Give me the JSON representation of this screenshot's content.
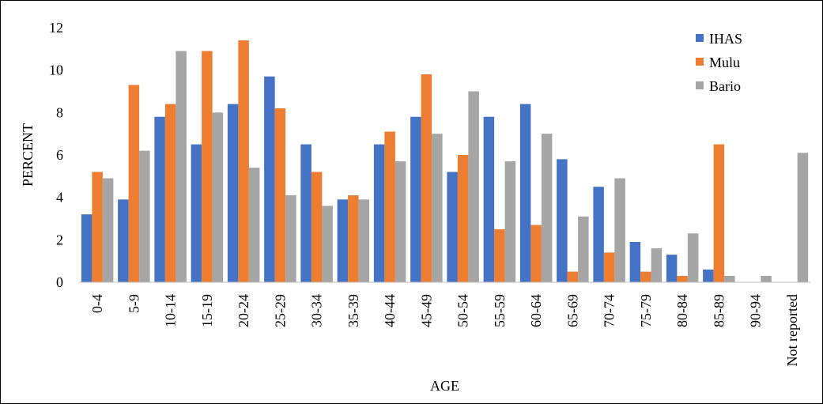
{
  "chart_data": {
    "type": "bar",
    "xlabel": "AGE",
    "ylabel": "PERCENT",
    "ylim": [
      0,
      12
    ],
    "yticks": [
      0,
      2,
      4,
      6,
      8,
      10,
      12
    ],
    "grid": false,
    "legend_position": "top-right",
    "categories": [
      "0-4",
      "5-9",
      "10-14",
      "15-19",
      "20-24",
      "25-29",
      "30-34",
      "35-39",
      "40-44",
      "45-49",
      "50-54",
      "55-59",
      "60-64",
      "65-69",
      "70-74",
      "75-79",
      "80-84",
      "85-89",
      "90-94",
      "Not reported"
    ],
    "series": [
      {
        "name": "IHAS",
        "color": "#4472C4",
        "values": [
          3.2,
          3.9,
          7.8,
          6.5,
          8.4,
          9.7,
          6.5,
          3.9,
          6.5,
          7.8,
          5.2,
          7.8,
          8.4,
          5.8,
          4.5,
          1.9,
          1.3,
          0.6,
          0.0,
          0.0
        ]
      },
      {
        "name": "Mulu",
        "color": "#ED7D31",
        "values": [
          5.2,
          9.3,
          8.4,
          10.9,
          11.4,
          8.2,
          5.2,
          4.1,
          7.1,
          9.8,
          6.0,
          2.5,
          2.7,
          0.5,
          1.4,
          0.5,
          0.3,
          6.5,
          0.0,
          0.0
        ]
      },
      {
        "name": "Bario",
        "color": "#A5A5A5",
        "values": [
          4.9,
          6.2,
          10.9,
          8.0,
          5.4,
          4.1,
          3.6,
          3.9,
          5.7,
          7.0,
          9.0,
          5.7,
          7.0,
          3.1,
          4.9,
          1.6,
          2.3,
          0.3,
          0.3,
          6.1
        ]
      }
    ]
  }
}
